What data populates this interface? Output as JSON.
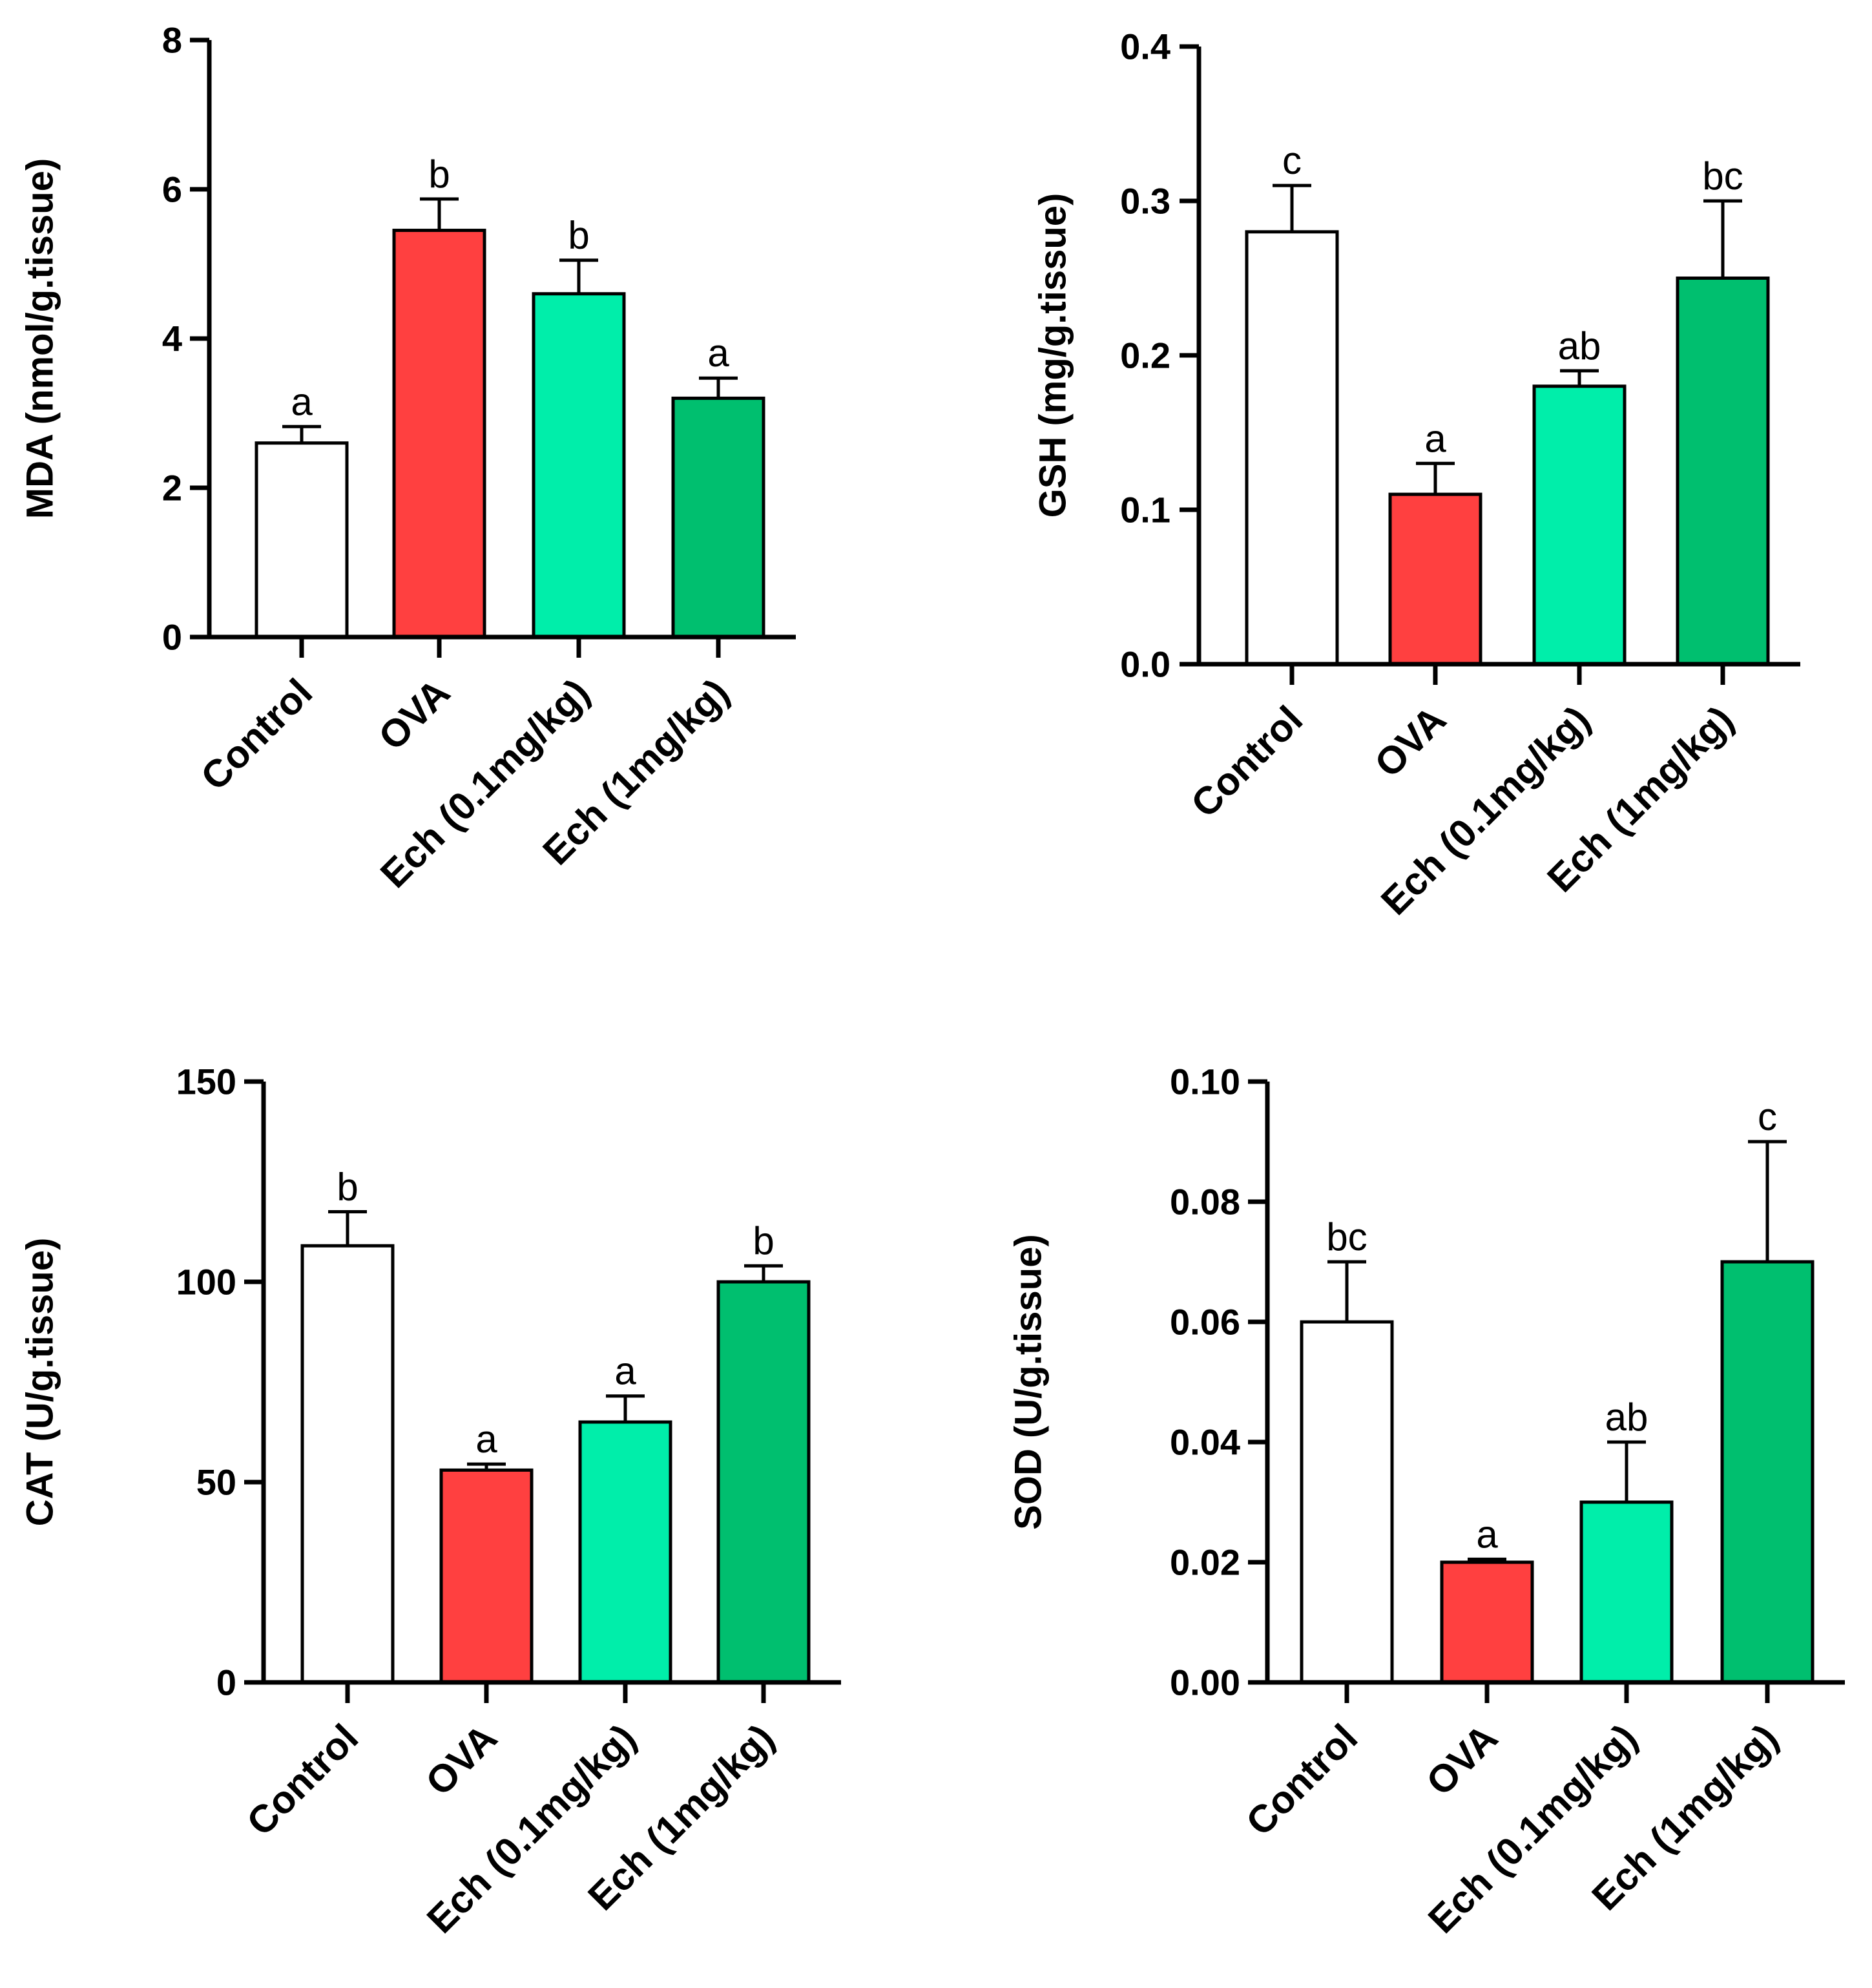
{
  "chart_data": [
    {
      "type": "bar",
      "categories": [
        "Control",
        "OVA",
        "Ech (0.1mg/kg)",
        "Ech (1mg/kg)"
      ],
      "values": [
        2.6,
        5.45,
        4.6,
        3.2
      ],
      "errors": [
        0.22,
        0.42,
        0.45,
        0.27
      ],
      "significance": [
        "a",
        "b",
        "b",
        "a"
      ],
      "colors": [
        "#ffffff",
        "#ff4040",
        "#00eeaa",
        "#00bf6f"
      ],
      "title": "",
      "xlabel": "",
      "ylabel": "MDA (nmol/g.tissue)",
      "ylim": [
        0,
        8
      ],
      "yticks": [
        0,
        2,
        4,
        6,
        8
      ],
      "ytick_labels": [
        "0",
        "2",
        "4",
        "6",
        "8"
      ]
    },
    {
      "type": "bar",
      "categories": [
        "Control",
        "OVA",
        "Ech (0.1mg/kg)",
        "Ech (1mg/kg)"
      ],
      "values": [
        0.28,
        0.11,
        0.18,
        0.25
      ],
      "errors": [
        0.03,
        0.02,
        0.01,
        0.05
      ],
      "significance": [
        "c",
        "a",
        "ab",
        "bc"
      ],
      "colors": [
        "#ffffff",
        "#ff4040",
        "#00eeaa",
        "#00bf6f"
      ],
      "title": "",
      "xlabel": "",
      "ylabel": "GSH (mg/g.tissue)",
      "ylim": [
        0,
        0.4
      ],
      "yticks": [
        0,
        0.1,
        0.2,
        0.3,
        0.4
      ],
      "ytick_labels": [
        "0.0",
        "0.1",
        "0.2",
        "0.3",
        "0.4"
      ]
    },
    {
      "type": "bar",
      "categories": [
        "Control",
        "OVA",
        "Ech (0.1mg/kg)",
        "Ech (1mg/kg)"
      ],
      "values": [
        109,
        53,
        65,
        100
      ],
      "errors": [
        8.5,
        1.5,
        6.5,
        4
      ],
      "significance": [
        "b",
        "a",
        "a",
        "b"
      ],
      "colors": [
        "#ffffff",
        "#ff4040",
        "#00eeaa",
        "#00bf6f"
      ],
      "title": "",
      "xlabel": "",
      "ylabel": "CAT (U/g.tissue)",
      "ylim": [
        0,
        150
      ],
      "yticks": [
        0,
        50,
        100,
        150
      ],
      "ytick_labels": [
        "0",
        "50",
        "100",
        "150"
      ]
    },
    {
      "type": "bar",
      "categories": [
        "Control",
        "OVA",
        "Ech (0.1mg/kg)",
        "Ech (1mg/kg)"
      ],
      "values": [
        0.06,
        0.02,
        0.03,
        0.07
      ],
      "errors": [
        0.01,
        0.0005,
        0.01,
        0.02
      ],
      "significance": [
        "bc",
        "a",
        "ab",
        "c"
      ],
      "colors": [
        "#ffffff",
        "#ff4040",
        "#00eeaa",
        "#00bf6f"
      ],
      "title": "",
      "xlabel": "",
      "ylabel": "SOD (U/g.tissue)",
      "ylim": [
        0,
        0.1
      ],
      "yticks": [
        0,
        0.02,
        0.04,
        0.06,
        0.08,
        0.1
      ],
      "ytick_labels": [
        "0.00",
        "0.02",
        "0.04",
        "0.06",
        "0.08",
        "0.10"
      ]
    }
  ]
}
